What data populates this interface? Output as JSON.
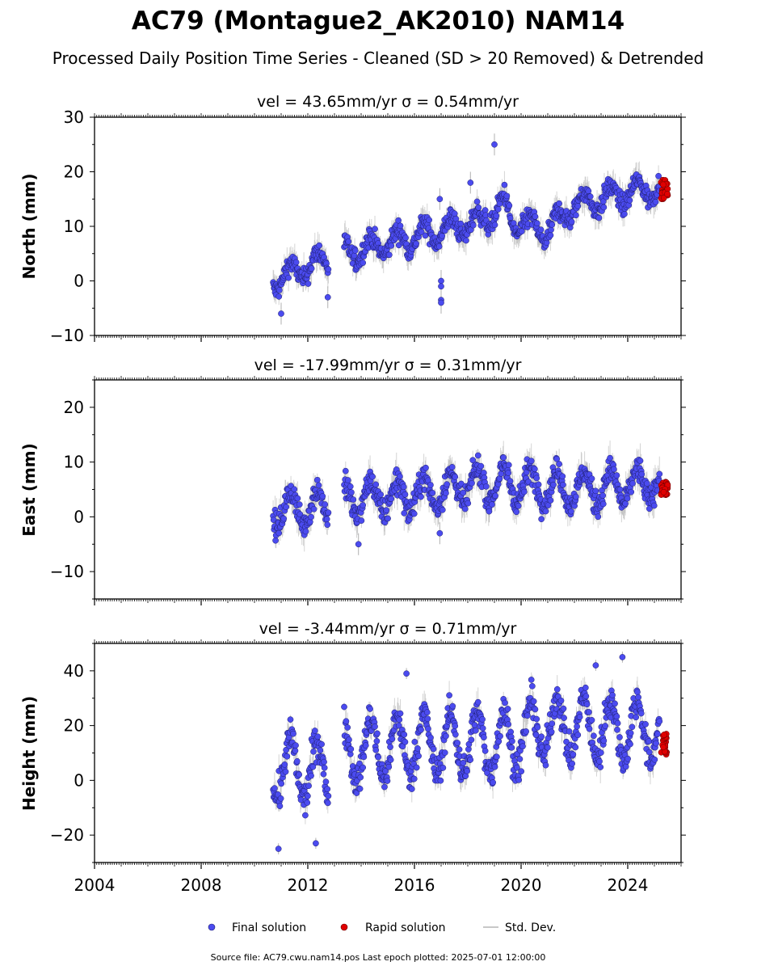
{
  "chart_data": {
    "type": "scatter",
    "title": "AC79 (Montague2_AK2010) NAM14",
    "subtitle": "Processed Daily Position Time Series - Cleaned (SD > 20 Removed) & Detrended",
    "x_range": [
      2004.0,
      2026.0
    ],
    "x_ticks": [
      "2004",
      "2008",
      "2012",
      "2016",
      "2020",
      "2024"
    ],
    "legend": {
      "placement": "bottom-center",
      "items": [
        "Final solution",
        "Rapid solution",
        "Std. Dev."
      ],
      "colors": [
        "#4b4bef",
        "#e00000",
        "#c8c8c8"
      ]
    },
    "footer": "Source file: AC79.cwu.nam14.pos  Last epoch plotted: 2025-07-01 12:00:00",
    "panels": [
      {
        "key": "north",
        "ylabel": "North (mm)",
        "title": "vel = 43.65mm/yr   σ = 0.54mm/yr",
        "ylim": [
          -10,
          30
        ],
        "yticks": [
          -10,
          0,
          10,
          20,
          30
        ],
        "final_trend": [
          [
            2010.7,
            0
          ],
          [
            2012.7,
            4
          ],
          [
            2013.4,
            5
          ],
          [
            2016.0,
            8
          ],
          [
            2018.5,
            11
          ],
          [
            2019.4,
            14
          ],
          [
            2019.6,
            11
          ],
          [
            2021.0,
            9
          ],
          [
            2022.0,
            14
          ],
          [
            2025.0,
            17
          ]
        ],
        "seasonal_amplitude": 2.0,
        "outliers": [
          [
            2019.0,
            25
          ],
          [
            2017.0,
            -3.5
          ],
          [
            2017.0,
            -4
          ],
          [
            2017.0,
            0
          ],
          [
            2017.0,
            -1
          ],
          [
            2011.0,
            -6
          ],
          [
            2012.75,
            -3
          ],
          [
            2016.95,
            15
          ],
          [
            2018.1,
            18
          ]
        ],
        "rapid": {
          "x_range": [
            2025.25,
            2025.5
          ],
          "y_range": [
            15,
            18.5
          ]
        }
      },
      {
        "key": "east",
        "ylabel": "East (mm)",
        "title": "vel = -17.99mm/yr   σ = 0.31mm/yr",
        "ylim": [
          -15,
          25
        ],
        "yticks": [
          -10,
          0,
          10,
          20
        ],
        "final_trend": [
          [
            2010.7,
            1
          ],
          [
            2012.7,
            2
          ],
          [
            2013.4,
            3
          ],
          [
            2016.0,
            4
          ],
          [
            2018.5,
            6
          ],
          [
            2020.0,
            6
          ],
          [
            2022.0,
            5
          ],
          [
            2025.0,
            6
          ]
        ],
        "seasonal_amplitude": 3.0,
        "outliers": [
          [
            2013.9,
            -5
          ],
          [
            2016.95,
            -3
          ],
          [
            2018.8,
            1
          ]
        ],
        "rapid": {
          "x_range": [
            2025.25,
            2025.5
          ],
          "y_range": [
            4,
            6.5
          ]
        }
      },
      {
        "key": "height",
        "ylabel": "Height (mm)",
        "title": "vel = -3.44mm/yr   σ = 0.71mm/yr",
        "ylim": [
          -30,
          50
        ],
        "yticks": [
          -20,
          0,
          20,
          40
        ],
        "final_trend": [
          [
            2010.7,
            5
          ],
          [
            2012.7,
            3
          ],
          [
            2013.4,
            10
          ],
          [
            2016.0,
            13
          ],
          [
            2019.5,
            14
          ],
          [
            2021.0,
            20
          ],
          [
            2025.0,
            18
          ]
        ],
        "seasonal_amplitude": 11.0,
        "outliers": [
          [
            2010.9,
            -25
          ],
          [
            2012.3,
            -23
          ],
          [
            2022.8,
            42
          ],
          [
            2023.8,
            45
          ],
          [
            2015.7,
            39
          ]
        ],
        "rapid": {
          "x_range": [
            2025.25,
            2025.5
          ],
          "y_range": [
            9,
            17
          ]
        }
      }
    ]
  }
}
